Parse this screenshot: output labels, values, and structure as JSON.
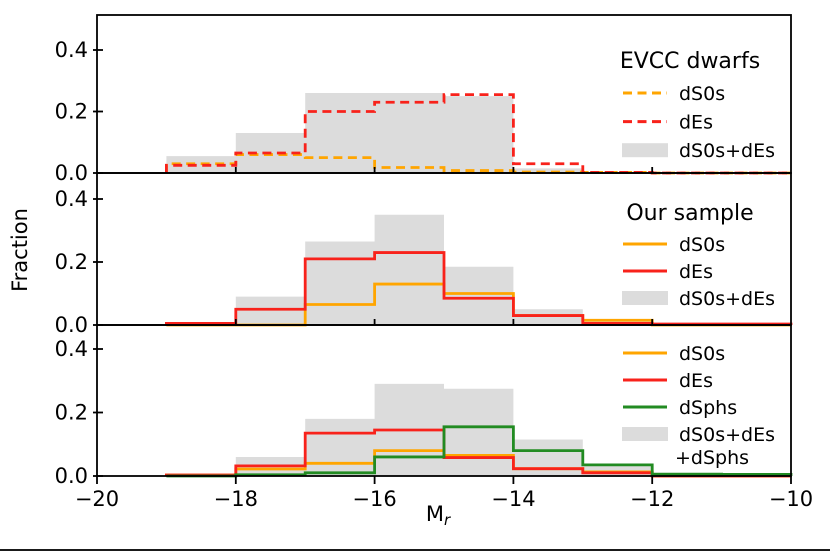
{
  "figure": {
    "background": "#ffffff",
    "bottom_rule_color": "#1a1a1a"
  },
  "chart_data": {
    "type": "step-histogram",
    "xlabel": {
      "text": "M",
      "subscript": "r"
    },
    "ylabel": "Fraction",
    "xlim": [
      -20,
      -10
    ],
    "ylim": [
      0,
      0.48
    ],
    "grid": false,
    "legend_position": "upper right (inside each panel)",
    "bin_edges": [
      -19,
      -18,
      -17,
      -16,
      -15,
      -14,
      -13,
      -12,
      -11,
      -10
    ],
    "xticks": [
      {
        "value": -20,
        "label": "−20"
      },
      {
        "value": -18,
        "label": "−18"
      },
      {
        "value": -16,
        "label": "−16"
      },
      {
        "value": -14,
        "label": "−14"
      },
      {
        "value": -12,
        "label": "−12"
      },
      {
        "value": -10,
        "label": "−10"
      }
    ],
    "yticks": [
      {
        "value": 0.0,
        "label": "0.0"
      },
      {
        "value": 0.2,
        "label": "0.2"
      },
      {
        "value": 0.4,
        "label": "0.4"
      }
    ],
    "colors": {
      "dS0s": "#ffa500",
      "dEs": "#f8221b",
      "dSphs": "#228b22",
      "combined_fill": "#dcdcdc",
      "axis": "#000000"
    },
    "panels": [
      {
        "id": "evcc",
        "legend_title": "EVCC dwarfs",
        "series": [
          {
            "label": "dS0s+dEs",
            "kind": "fill",
            "color_key": "combined_fill",
            "dash": false,
            "legend_label_lines": [
              "dS0s+dEs"
            ],
            "values": [
              0.055,
              0.13,
              0.26,
              0.26,
              0.25,
              0.015,
              0,
              0,
              0
            ]
          },
          {
            "label": "dS0s",
            "kind": "line",
            "color_key": "dS0s",
            "dash": true,
            "legend_label_lines": [
              "dS0s"
            ],
            "values": [
              0.03,
              0.06,
              0.05,
              0.018,
              0.008,
              0.003,
              0.002,
              0,
              0
            ]
          },
          {
            "label": "dEs",
            "kind": "line",
            "color_key": "dEs",
            "dash": true,
            "legend_label_lines": [
              "dEs"
            ],
            "values": [
              0.025,
              0.065,
              0.2,
              0.23,
              0.255,
              0.03,
              0.002,
              0,
              0
            ]
          }
        ]
      },
      {
        "id": "our-sample",
        "legend_title": "Our sample",
        "series": [
          {
            "label": "dS0s+dEs",
            "kind": "fill",
            "color_key": "combined_fill",
            "dash": false,
            "legend_label_lines": [
              "dS0s+dEs"
            ],
            "values": [
              0.004,
              0.09,
              0.265,
              0.35,
              0.185,
              0.05,
              0.018,
              0,
              0
            ]
          },
          {
            "label": "dS0s",
            "kind": "line",
            "color_key": "dS0s",
            "dash": false,
            "legend_label_lines": [
              "dS0s"
            ],
            "values": [
              0,
              0,
              0.065,
              0.13,
              0.1,
              0.03,
              0.015,
              0,
              0
            ]
          },
          {
            "label": "dEs",
            "kind": "line",
            "color_key": "dEs",
            "dash": false,
            "legend_label_lines": [
              "dEs"
            ],
            "values": [
              0.005,
              0.05,
              0.21,
              0.23,
              0.085,
              0.03,
              0.005,
              0.003,
              0.003
            ]
          }
        ]
      },
      {
        "id": "our-sample-with-dsphs",
        "legend_title": "",
        "series": [
          {
            "label": "dS0s+dEs+dSphs",
            "kind": "fill",
            "color_key": "combined_fill",
            "dash": false,
            "legend_label_lines": [
              "dS0s+dEs",
              "+dSphs"
            ],
            "values": [
              0.004,
              0.06,
              0.18,
              0.29,
              0.275,
              0.115,
              0.032,
              0.005,
              0.003
            ]
          },
          {
            "label": "dS0s",
            "kind": "line",
            "color_key": "dS0s",
            "dash": false,
            "legend_label_lines": [
              "dS0s"
            ],
            "values": [
              0.003,
              0.022,
              0.04,
              0.08,
              0.065,
              0.023,
              0.013,
              0,
              0
            ]
          },
          {
            "label": "dEs",
            "kind": "line",
            "color_key": "dEs",
            "dash": false,
            "legend_label_lines": [
              "dEs"
            ],
            "values": [
              0.003,
              0.032,
              0.135,
              0.145,
              0.058,
              0.023,
              0.01,
              0,
              0
            ]
          },
          {
            "label": "dSphs",
            "kind": "line",
            "color_key": "dSphs",
            "dash": false,
            "legend_label_lines": [
              "dSphs"
            ],
            "values": [
              0,
              0.004,
              0.01,
              0.06,
              0.155,
              0.08,
              0.035,
              0.006,
              0.005
            ]
          }
        ]
      }
    ]
  }
}
